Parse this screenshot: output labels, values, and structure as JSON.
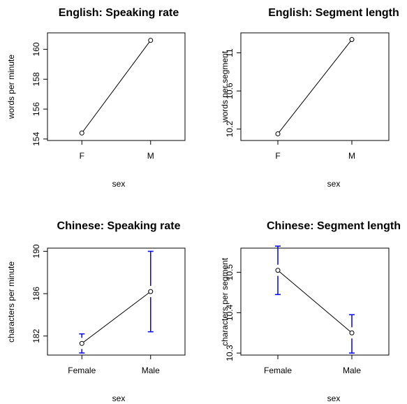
{
  "figure": {
    "background": "#ffffff",
    "point_color": "#000000",
    "line_color": "#000000",
    "errorbar_color": "#0000ff"
  },
  "chart_data": [
    {
      "type": "line",
      "title": "English: Speaking rate",
      "xlabel": "sex",
      "ylabel": "words per minute",
      "categories": [
        "F",
        "M"
      ],
      "values": [
        154.4,
        160.6
      ],
      "ylim": [
        153.9,
        161.1
      ],
      "yticks": [
        154,
        156,
        158,
        160
      ],
      "error_bars": null
    },
    {
      "type": "line",
      "title": "English: Segment length",
      "xlabel": "sex",
      "ylabel": "words per segment",
      "categories": [
        "F",
        "M"
      ],
      "values": [
        10.15,
        11.14
      ],
      "ylim": [
        10.08,
        11.21
      ],
      "yticks": [
        10.2,
        10.6,
        11.0
      ],
      "error_bars": null
    },
    {
      "type": "line",
      "title": "Chinese: Speaking rate",
      "xlabel": "sex",
      "ylabel": "characters per minute",
      "categories": [
        "Female",
        "Male"
      ],
      "values": [
        181.3,
        186.2
      ],
      "ylim": [
        180.2,
        190.3
      ],
      "yticks": [
        182,
        186,
        190
      ],
      "error_bars": [
        [
          180.4,
          182.2
        ],
        [
          182.4,
          190.0
        ]
      ]
    },
    {
      "type": "line",
      "title": "Chinese: Segment length",
      "xlabel": "sex",
      "ylabel": "characters per segment",
      "categories": [
        "Female",
        "Male"
      ],
      "values": [
        10.505,
        10.35
      ],
      "ylim": [
        10.295,
        10.56
      ],
      "yticks": [
        10.3,
        10.4,
        10.5
      ],
      "error_bars": [
        [
          10.445,
          10.565
        ],
        [
          10.3,
          10.395
        ]
      ]
    }
  ]
}
